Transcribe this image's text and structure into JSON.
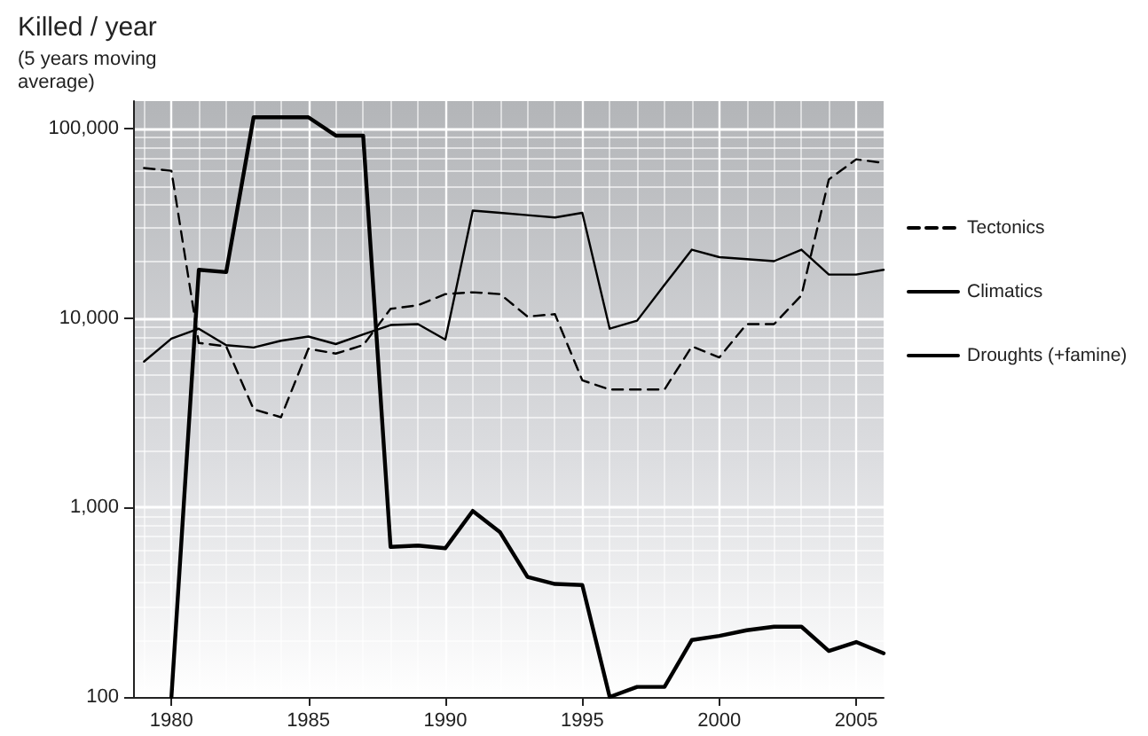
{
  "chart_data": {
    "type": "line",
    "ylabel": "Killed / year",
    "subtitle": "(5 years moving average)",
    "x": [
      1979,
      1980,
      1981,
      1982,
      1983,
      1984,
      1985,
      1986,
      1987,
      1988,
      1989,
      1990,
      1991,
      1992,
      1993,
      1994,
      1995,
      1996,
      1997,
      1998,
      1999,
      2000,
      2001,
      2002,
      2003,
      2004,
      2005,
      2006
    ],
    "series": [
      {
        "name": "Tectonics",
        "color": "#000000",
        "line_style": "dashed",
        "values": [
          62000,
          60000,
          7400,
          7100,
          3300,
          3000,
          6900,
          6500,
          7200,
          11200,
          11700,
          13400,
          13700,
          13400,
          10200,
          10500,
          4700,
          4200,
          4200,
          4200,
          7100,
          6200,
          9300,
          9300,
          13200,
          54000,
          69000,
          66000
        ]
      },
      {
        "name": "Climatics",
        "color": "#000000",
        "line_style": "solid",
        "values": [
          5900,
          7800,
          8800,
          7200,
          7000,
          7600,
          8000,
          7300,
          8200,
          9200,
          9300,
          7700,
          37000,
          36000,
          35000,
          34000,
          36000,
          8800,
          9700,
          15000,
          23000,
          21000,
          20500,
          20000,
          23000,
          17000,
          17000,
          18000
        ]
      },
      {
        "name": "Droughts (+famine)",
        "color": "#000000",
        "line_style": "solid",
        "values": [
          null,
          100,
          18000,
          17500,
          115000,
          115000,
          115000,
          92000,
          92000,
          620,
          630,
          610,
          960,
          740,
          430,
          395,
          390,
          100,
          113,
          113,
          200,
          210,
          225,
          235,
          235,
          175,
          195,
          170
        ]
      }
    ],
    "log": "y",
    "xlim": [
      1978.6,
      2006
    ],
    "xticks": [
      1980,
      1985,
      1990,
      1995,
      2000,
      2005
    ],
    "ylim": [
      100,
      140000
    ],
    "yticks": [
      {
        "value": 100,
        "label": "100"
      },
      {
        "value": 1000,
        "label": "1,000"
      },
      {
        "value": 10000,
        "label": "10,000"
      },
      {
        "value": 100000,
        "label": "100,000"
      }
    ],
    "grid": true,
    "legend": "right",
    "marker": "none"
  }
}
